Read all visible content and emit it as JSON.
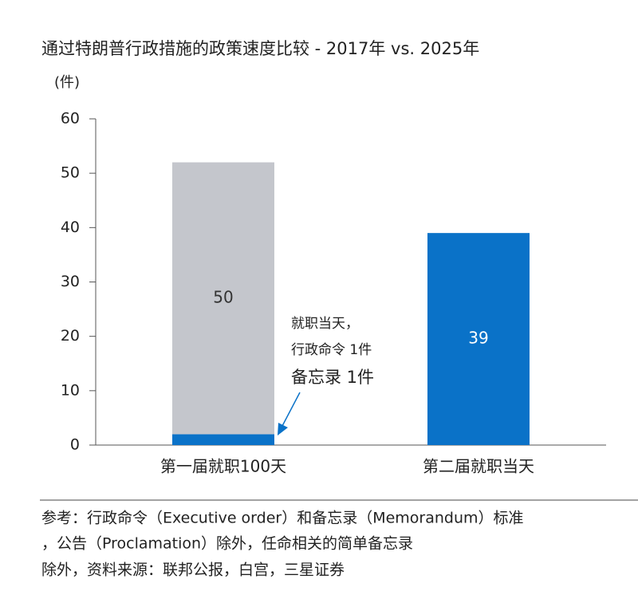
{
  "chart_data": {
    "type": "stacked_bar",
    "title": "通过特朗普行政措施的政策速度比较 - 2017年 vs. 2025年",
    "y_label": "(件)",
    "categories": [
      "第一届就职100天",
      "第二届就职当天"
    ],
    "series": [
      {
        "color": "#0a72c8",
        "values": [
          2,
          39
        ]
      },
      {
        "color": "#c4c6cc",
        "values": [
          50,
          null
        ]
      }
    ],
    "ylim": [
      0,
      60
    ],
    "yticks": [
      0,
      10,
      20,
      30,
      40,
      50,
      60
    ],
    "annotations": [
      "就职当天，",
      "行政命令 1件",
      "备忘录 1件"
    ]
  },
  "footnote": [
    "参考：行政命令（Executive order）和备忘录（Memorandum）标准",
    "，公告（Proclamation）除外，任命相关的简单备忘录",
    "除外，资料来源：联邦公报，白宫，三星证券"
  ]
}
